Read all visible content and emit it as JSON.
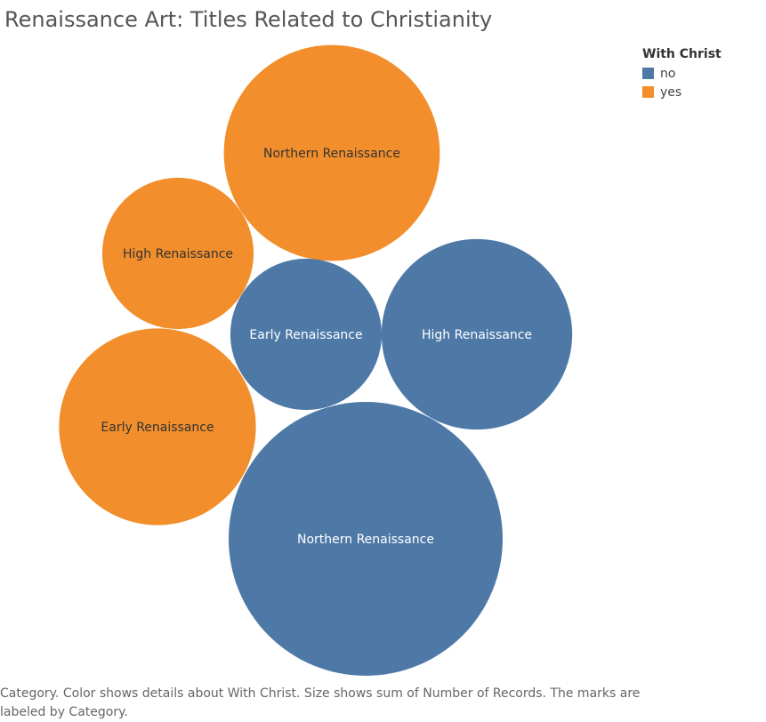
{
  "title": "Renaissance Art: Titles Related to Christianity",
  "legend": {
    "title": "With Christ",
    "items": [
      {
        "label": "no",
        "color": "#4e79a7"
      },
      {
        "label": "yes",
        "color": "#f28e2b"
      }
    ]
  },
  "caption": "Category.  Color shows details about With Christ.  Size shows sum of Number of Records.  The marks are labeled by Category.",
  "chart_data": {
    "type": "bubble",
    "size_measure": "Number of Records",
    "color_measure": "With Christ",
    "label_field": "Category",
    "bubbles": [
      {
        "category": "Northern Renaissance",
        "with_christ": "no",
        "records": 95
      },
      {
        "category": "Northern Renaissance",
        "with_christ": "yes",
        "records": 59
      },
      {
        "category": "High Renaissance",
        "with_christ": "no",
        "records": 46
      },
      {
        "category": "Early Renaissance",
        "with_christ": "yes",
        "records": 49
      },
      {
        "category": "Early Renaissance",
        "with_christ": "no",
        "records": 29
      },
      {
        "category": "High Renaissance",
        "with_christ": "yes",
        "records": 29
      }
    ]
  }
}
